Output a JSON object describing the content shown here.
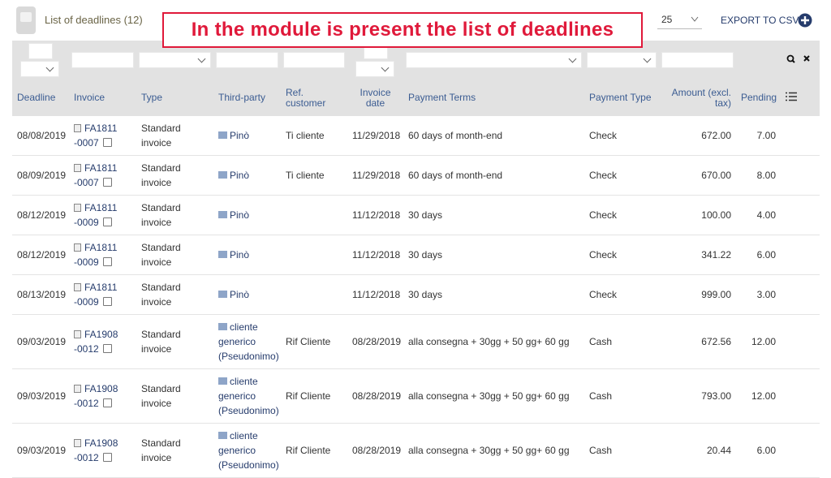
{
  "header": {
    "title": "List of deadlines (12)",
    "page_size": "25",
    "export": "EXPORT TO CSV"
  },
  "annotation": "In the module is present the list of deadlines",
  "table": {
    "columns": [
      "Deadline",
      "Invoice",
      "Type",
      "Third-party",
      "Ref. customer",
      "Invoice date",
      "Payment Terms",
      "Payment Type",
      "Amount (excl. tax)",
      "Pending"
    ],
    "rows": [
      [
        "08/08/2019",
        "FA1811-0007",
        "Standard invoice",
        "Pinò",
        "Ti cliente",
        "11/29/2018",
        "60 days of month-end",
        "Check",
        "672.00",
        "7.00"
      ],
      [
        "08/09/2019",
        "FA1811-0007",
        "Standard invoice",
        "Pinò",
        "Ti cliente",
        "11/29/2018",
        "60 days of month-end",
        "Check",
        "670.00",
        "8.00"
      ],
      [
        "08/12/2019",
        "FA1811-0009",
        "Standard invoice",
        "Pinò",
        null,
        "11/12/2018",
        "30 days",
        "Check",
        "100.00",
        "4.00"
      ],
      [
        "08/12/2019",
        "FA1811-0009",
        "Standard invoice",
        "Pinò",
        null,
        "11/12/2018",
        "30 days",
        "Check",
        "341.22",
        "6.00"
      ],
      [
        "08/13/2019",
        "FA1811-0009",
        "Standard invoice",
        "Pinò",
        null,
        "11/12/2018",
        "30 days",
        "Check",
        "999.00",
        "3.00"
      ],
      [
        "09/03/2019",
        "FA1908-0012",
        "Standard invoice",
        "cliente generico (Pseudonimo)",
        "Rif Cliente",
        "08/28/2019",
        "alla consegna + 30gg + 50 gg+ 60 gg",
        "Cash",
        "672.56",
        "12.00"
      ],
      [
        "09/03/2019",
        "FA1908-0012",
        "Standard invoice",
        "cliente generico (Pseudonimo)",
        "Rif Cliente",
        "08/28/2019",
        "alla consegna + 30gg + 50 gg+ 60 gg",
        "Cash",
        "793.00",
        "12.00"
      ],
      [
        "09/03/2019",
        "FA1908-0012",
        "Standard invoice",
        "cliente generico (Pseudonimo)",
        "Rif Cliente",
        "08/28/2019",
        "alla consegna + 30gg + 50 gg+ 60 gg",
        "Cash",
        "20.44",
        "6.00"
      ]
    ]
  }
}
